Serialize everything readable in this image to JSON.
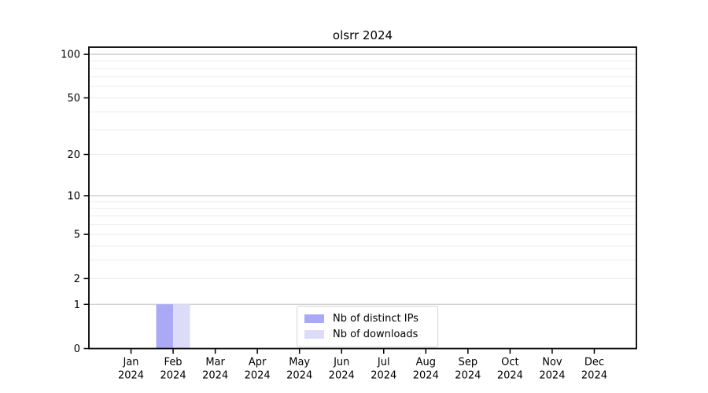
{
  "chart_data": {
    "type": "bar",
    "title": "olsrr 2024",
    "x": {
      "months": [
        "Jan",
        "Feb",
        "Mar",
        "Apr",
        "May",
        "Jun",
        "Jul",
        "Aug",
        "Sep",
        "Oct",
        "Nov",
        "Dec"
      ],
      "year": "2024"
    },
    "series": [
      {
        "name": "Nb of distinct IPs",
        "color": "#a9a9f6",
        "values": [
          0,
          1,
          0,
          0,
          0,
          0,
          0,
          0,
          0,
          0,
          0,
          0
        ]
      },
      {
        "name": "Nb of downloads",
        "color": "#dcdcf8",
        "values": [
          0,
          1,
          0,
          0,
          0,
          0,
          0,
          0,
          0,
          0,
          0,
          0
        ]
      }
    ],
    "yticks": [
      0,
      1,
      2,
      5,
      10,
      20,
      50,
      100
    ],
    "major_gridlines": [
      1,
      10,
      100
    ],
    "minor_gridlines": [
      2,
      3,
      4,
      5,
      6,
      7,
      8,
      9,
      20,
      30,
      40,
      50,
      60,
      70,
      80,
      90
    ],
    "ylim": [
      0,
      112
    ],
    "yscale": "log10(1+y)",
    "grid": true,
    "legend_position": "bottom-center"
  },
  "colors": {
    "axis": "#000000",
    "tick_text": "#000000",
    "major_grid": "#c9c9c9",
    "minor_grid": "#ededed",
    "legend_border": "#d4d4d4",
    "background": "#ffffff"
  }
}
